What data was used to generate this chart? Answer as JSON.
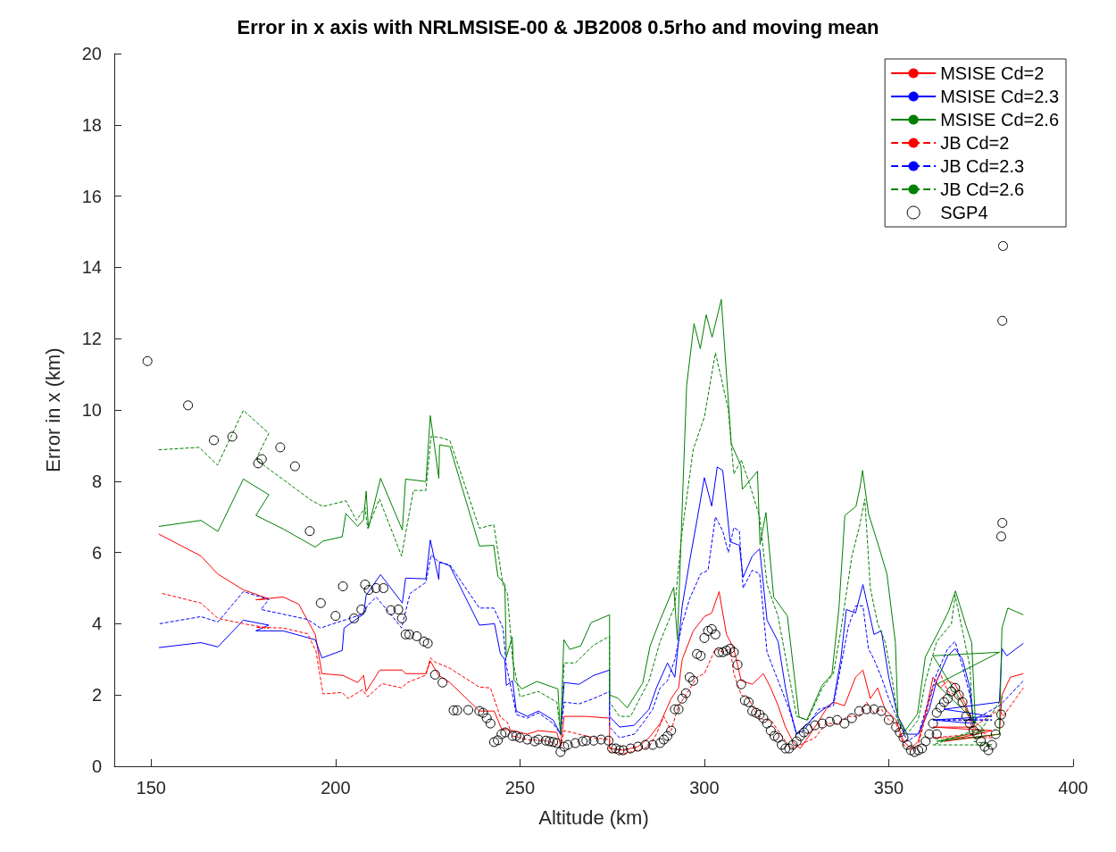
{
  "chart_data": {
    "type": "line",
    "title": "Error in x axis with NRLMSISE-00 & JB2008 0.5rho and moving mean",
    "xlabel": "Altitude (km)",
    "ylabel": "Error in x (km)",
    "xlim": [
      140,
      400
    ],
    "xticks": [
      150,
      200,
      250,
      300,
      350,
      400
    ],
    "ylim": [
      0,
      20
    ],
    "yticks": [
      0,
      2,
      4,
      6,
      8,
      10,
      12,
      14,
      16,
      18,
      20
    ],
    "grid": false,
    "legend": "top right",
    "series": [
      {
        "name": "MSISE Cd=2",
        "color": "#ff0000",
        "line_style": "solid",
        "marker": "none",
        "x": [
          152,
          163.5,
          168,
          175,
          181.9,
          178.4,
          185.8,
          190,
          194.5,
          196.3,
          202,
          206,
          207.6,
          208.3,
          212,
          218.1,
          219,
          224.5,
          225.7,
          228,
          231,
          239,
          243,
          245,
          248,
          252,
          255,
          260,
          261,
          262,
          268,
          274.3,
          274.3,
          278,
          282,
          285,
          288,
          291,
          293,
          294,
          297,
          300,
          302,
          304,
          306,
          308,
          310,
          313,
          316,
          318,
          320,
          322,
          324,
          326,
          330,
          333,
          335,
          338,
          341,
          343,
          345,
          347,
          349,
          352,
          354,
          356,
          358,
          360,
          362,
          364,
          366,
          368,
          371,
          373,
          362,
          378,
          365,
          380,
          380.7,
          383,
          386.5
        ],
        "values": [
          6.52,
          5.9,
          5.4,
          4.95,
          4.7,
          4.67,
          4.75,
          4.55,
          3.7,
          2.6,
          2.55,
          2.35,
          2.55,
          2.1,
          2.7,
          2.7,
          2.6,
          2.6,
          2.95,
          2.55,
          2.35,
          1.55,
          1.55,
          1.05,
          1.0,
          0.9,
          1.0,
          0.95,
          0.6,
          1.4,
          1.4,
          1.35,
          0.5,
          0.45,
          0.55,
          0.8,
          1.2,
          1.9,
          2.2,
          3.0,
          3.8,
          4.2,
          4.3,
          4.9,
          3.7,
          3.3,
          2.4,
          2.3,
          2.6,
          2.2,
          1.7,
          1.1,
          0.7,
          0.5,
          1.1,
          1.6,
          1.8,
          1.7,
          2.5,
          2.7,
          1.9,
          2.2,
          1.6,
          1.3,
          0.7,
          0.5,
          0.7,
          1.5,
          2.5,
          2.2,
          2.4,
          2.3,
          1.7,
          1.1,
          1.1,
          1.0,
          0.7,
          0.9,
          2.0,
          2.5,
          2.6
        ]
      },
      {
        "name": "MSISE Cd=2.3",
        "color": "#0000ff",
        "line_style": "solid",
        "marker": "none",
        "x": [
          152.1,
          163.5,
          168.1,
          175,
          181.9,
          178.4,
          185.8,
          194.5,
          196.3,
          201.8,
          202.3,
          207.6,
          208.3,
          212.2,
          218.1,
          219,
          224.5,
          225.7,
          228,
          228.2,
          231,
          239,
          243.1,
          244.7,
          245.9,
          246.3,
          248,
          249,
          252,
          255,
          259,
          261,
          262,
          266,
          270,
          274.3,
          274.3,
          277,
          281,
          285,
          287,
          290,
          292,
          294,
          296,
          298,
          300,
          302,
          303.5,
          305,
          307,
          309.5,
          310.5,
          313,
          315,
          317,
          320,
          322,
          323,
          325,
          327,
          331,
          335,
          337,
          338.5,
          341,
          343,
          344.5,
          346,
          348,
          350,
          352.5,
          355,
          358,
          361,
          363,
          366,
          368,
          370,
          372,
          373,
          362,
          378,
          365,
          380,
          380.7,
          382,
          386.5
        ],
        "values": [
          3.33,
          3.47,
          3.35,
          4.1,
          3.96,
          3.8,
          3.8,
          3.55,
          3.04,
          3.25,
          3.88,
          4.27,
          4.8,
          5.38,
          4.58,
          5.28,
          5.26,
          6.35,
          5.24,
          5.74,
          5.62,
          3.96,
          4.0,
          3.16,
          2.99,
          2.27,
          2.4,
          1.55,
          1.4,
          1.55,
          1.3,
          0.9,
          2.35,
          2.3,
          2.55,
          2.7,
          1.4,
          1.1,
          1.15,
          1.6,
          2.2,
          2.9,
          2.5,
          4.5,
          5.75,
          6.9,
          8.1,
          7.3,
          8.4,
          8.3,
          6.3,
          6.2,
          5.3,
          5.9,
          6.1,
          4.1,
          3.5,
          2.2,
          1.7,
          0.9,
          1.1,
          1.5,
          1.8,
          3.0,
          4.4,
          4.3,
          5.1,
          4.4,
          3.7,
          3.8,
          2.5,
          1.4,
          0.9,
          0.9,
          1.6,
          2.4,
          3.1,
          3.3,
          3.0,
          2.2,
          1.2,
          1.3,
          1.4,
          1.6,
          1.8,
          3.3,
          3.1,
          3.45
        ]
      },
      {
        "name": "MSISE Cd=2.6",
        "color": "#008000",
        "line_style": "solid",
        "marker": "none",
        "x": [
          152.1,
          163.5,
          168.1,
          175,
          181.9,
          178.4,
          185.8,
          194.5,
          196.6,
          201.8,
          202.8,
          206,
          207.6,
          208.3,
          208.9,
          212.2,
          218.1,
          219,
          224.5,
          225.7,
          228,
          228.2,
          231,
          239,
          242.9,
          244,
          245.9,
          246.3,
          247.9,
          248.4,
          250.5,
          254.6,
          260.3,
          261,
          261.9,
          263.5,
          266.5,
          269.3,
          274.3,
          274.3,
          276.6,
          279.1,
          283.3,
          285.3,
          287.8,
          291.7,
          292.7,
          295.2,
          297.2,
          298.9,
          300.5,
          302.1,
          304.6,
          307.3,
          309.9,
          310.3,
          314.4,
          315.1,
          316.7,
          318.8,
          322.5,
          325.7,
          327.8,
          331.9,
          334.6,
          336.5,
          338.1,
          341.1,
          342.2,
          342.9,
          344.5,
          347.2,
          349.5,
          351.8,
          352.5,
          354.4,
          357.8,
          359.9,
          364,
          366.3,
          368.1,
          370.9,
          372.5,
          373.5,
          362,
          380,
          363,
          376,
          363,
          380,
          380.7,
          382.3,
          386.5
        ],
        "values": [
          6.73,
          6.9,
          6.59,
          8.06,
          7.62,
          7.04,
          6.66,
          6.15,
          6.32,
          6.44,
          7.09,
          6.73,
          6.92,
          7.72,
          6.68,
          8.08,
          6.63,
          8.06,
          7.99,
          9.84,
          8.08,
          9.02,
          8.97,
          6.18,
          6.2,
          5.33,
          5.11,
          3.06,
          3.63,
          2.42,
          2.17,
          2.38,
          2.17,
          0.87,
          3.55,
          3.28,
          3.38,
          4.03,
          4.25,
          2.0,
          1.91,
          1.64,
          2.34,
          3.38,
          4.05,
          5.02,
          3.55,
          10.69,
          12.42,
          11.72,
          12.67,
          12.04,
          13.1,
          9.05,
          8.44,
          7.77,
          8.28,
          6.22,
          7.12,
          4.75,
          4.22,
          1.38,
          1.3,
          2.27,
          2.58,
          4.44,
          7.04,
          7.29,
          7.82,
          8.3,
          7.09,
          6.2,
          5.4,
          3.47,
          1.38,
          0.99,
          1.47,
          3.06,
          3.88,
          4.37,
          4.92,
          3.96,
          3.47,
          1.2,
          3.1,
          3.2,
          2.3,
          1.0,
          0.7,
          0.9,
          3.88,
          4.44,
          4.25
        ]
      },
      {
        "name": "JB Cd=2",
        "color": "#ff0000",
        "line_style": "dashed",
        "marker": "none",
        "x": [
          153,
          163.5,
          168.1,
          175,
          181.9,
          178.4,
          185.8,
          192.4,
          194.7,
          196.6,
          201.8,
          203.4,
          207.3,
          208.7,
          212.6,
          217.9,
          219.5,
          224.5,
          225.7,
          227.1,
          231,
          239,
          242,
          244.7,
          246.6,
          248,
          252,
          258,
          261,
          262,
          266,
          270,
          274.3,
          274.3,
          278,
          282,
          285,
          287,
          289,
          291,
          293,
          295,
          298,
          300,
          303,
          305,
          307,
          308,
          310,
          312,
          314,
          316,
          318,
          320,
          322,
          324,
          326,
          330,
          333,
          336,
          339,
          342,
          344,
          346,
          348,
          350,
          352,
          354,
          356,
          358,
          360,
          362,
          364,
          366,
          368,
          370,
          372,
          373,
          362,
          378,
          373,
          380,
          381,
          386.5
        ],
        "values": [
          4.85,
          4.58,
          4.15,
          4.0,
          3.88,
          3.9,
          3.88,
          3.72,
          3.23,
          2.03,
          2.07,
          1.9,
          2.15,
          1.95,
          2.32,
          2.2,
          2.35,
          2.56,
          3.04,
          2.92,
          2.75,
          2.22,
          2.2,
          1.38,
          1.23,
          0.85,
          0.75,
          0.7,
          0.55,
          1.0,
          0.9,
          0.8,
          0.75,
          0.4,
          0.35,
          0.45,
          0.55,
          0.9,
          1.4,
          1.0,
          1.7,
          2.0,
          2.5,
          2.6,
          3.3,
          3.2,
          3.3,
          2.6,
          2.0,
          1.9,
          1.5,
          1.3,
          1.3,
          1.0,
          0.7,
          0.5,
          0.6,
          0.8,
          1.2,
          1.2,
          1.4,
          1.4,
          1.8,
          1.5,
          1.6,
          1.3,
          1.2,
          0.6,
          0.45,
          0.6,
          1.4,
          2.2,
          2.6,
          2.1,
          2.0,
          1.8,
          1.3,
          0.9,
          0.8,
          0.8,
          1.1,
          1.6,
          1.4,
          2.2
        ]
      },
      {
        "name": "JB Cd=2.3",
        "color": "#0000ff",
        "line_style": "dashed",
        "marker": "none",
        "x": [
          152.3,
          163.5,
          168.1,
          175,
          181.9,
          179.8,
          192.4,
          195.9,
          201.8,
          207.3,
          208.7,
          211,
          214.9,
          217.9,
          220.2,
          224.5,
          225.9,
          228.2,
          231,
          239,
          242.9,
          245.4,
          246.3,
          248,
          249,
          252,
          255,
          259,
          261,
          262,
          266,
          270,
          274.3,
          274.3,
          277,
          281,
          284,
          286,
          288,
          290,
          292,
          294,
          296,
          299,
          301,
          303,
          305,
          306.5,
          308,
          309.5,
          310.5,
          313,
          315,
          317,
          320,
          323,
          325,
          327,
          331,
          335,
          337,
          339,
          341,
          343,
          344.5,
          346,
          348,
          350,
          352.5,
          355,
          358,
          361,
          363,
          366,
          368,
          370,
          372,
          373,
          362,
          378,
          373,
          380,
          381,
          386.5
        ],
        "values": [
          4.0,
          4.2,
          4.05,
          4.9,
          4.68,
          4.4,
          4.12,
          3.88,
          4.08,
          4.27,
          4.51,
          4.75,
          4.27,
          3.88,
          4.85,
          5.16,
          5.93,
          5.72,
          5.65,
          4.44,
          4.44,
          3.88,
          2.82,
          2.0,
          1.45,
          1.35,
          1.5,
          1.2,
          0.9,
          1.8,
          1.75,
          1.9,
          2.1,
          1.1,
          0.8,
          0.9,
          1.3,
          1.6,
          2.2,
          2.4,
          3.0,
          4.0,
          4.7,
          5.4,
          5.5,
          7.0,
          6.6,
          6.0,
          6.7,
          6.6,
          5.0,
          5.5,
          5.4,
          3.2,
          2.4,
          1.6,
          0.9,
          1.0,
          1.6,
          1.7,
          2.8,
          3.9,
          4.5,
          4.5,
          3.3,
          3.0,
          2.5,
          1.9,
          1.3,
          0.7,
          0.9,
          1.9,
          2.6,
          3.3,
          3.5,
          2.8,
          2.0,
          1.3,
          1.3,
          1.3,
          1.3,
          1.7,
          1.8,
          2.4
        ]
      },
      {
        "name": "JB Cd=2.6",
        "color": "#008000",
        "line_style": "dashed",
        "marker": "none",
        "x": [
          152,
          163,
          168,
          175,
          181.9,
          178.4,
          193.6,
          196.6,
          202.8,
          205.7,
          208,
          208.7,
          211.9,
          217.9,
          221.1,
          224.5,
          225.9,
          228.7,
          231,
          239,
          242.9,
          245.4,
          246.6,
          248,
          250,
          255,
          260,
          261,
          262,
          265,
          270,
          274.3,
          274.3,
          277,
          280,
          285,
          288,
          292,
          294,
          297,
          300,
          303,
          305,
          306.5,
          308,
          310,
          312,
          315,
          317,
          320,
          325,
          328,
          332,
          335,
          337,
          340,
          342,
          343.5,
          345,
          347,
          349,
          351,
          352.5,
          355,
          358,
          360,
          363,
          367,
          368,
          370,
          372,
          373,
          362,
          378,
          373,
          380,
          381
        ],
        "values": [
          8.88,
          8.95,
          8.45,
          9.99,
          9.34,
          8.61,
          7.45,
          7.29,
          7.45,
          6.9,
          7.26,
          6.68,
          7.5,
          5.9,
          7.74,
          7.74,
          9.26,
          9.22,
          9.14,
          6.68,
          6.78,
          5.09,
          4.85,
          3.0,
          1.95,
          2.1,
          1.8,
          0.95,
          2.9,
          2.9,
          3.4,
          3.65,
          1.8,
          1.4,
          1.4,
          2.4,
          3.5,
          4.5,
          6.6,
          8.9,
          9.8,
          11.6,
          10.7,
          10.0,
          8.2,
          8.6,
          8.0,
          7.0,
          5.1,
          4.2,
          1.4,
          1.3,
          2.2,
          2.6,
          3.8,
          5.9,
          6.7,
          7.5,
          5.0,
          4.0,
          3.5,
          2.4,
          1.3,
          0.9,
          1.3,
          2.4,
          3.5,
          4.0,
          4.8,
          3.8,
          2.8,
          1.0,
          0.6,
          0.6,
          0.7,
          1.8,
          2.0
        ]
      },
      {
        "name": "SGP4",
        "type": "scatter",
        "color": "#000000",
        "marker": "circle",
        "x": [
          149,
          160,
          167,
          172,
          179,
          180,
          185,
          189,
          193,
          196,
          200,
          202,
          205,
          207,
          208,
          209,
          211,
          213,
          215,
          217,
          218,
          219,
          220,
          222,
          224,
          225,
          227,
          229,
          232,
          233,
          236,
          239,
          240,
          241,
          242,
          243,
          244,
          245,
          246,
          248,
          249,
          250,
          252,
          254,
          255,
          257,
          258,
          259,
          260,
          261,
          262,
          263,
          265,
          267,
          268,
          270,
          272,
          274,
          275,
          276,
          277,
          278,
          280,
          282,
          284,
          286,
          288,
          289,
          290,
          291,
          292,
          293,
          294,
          295,
          296,
          297,
          298,
          299,
          300,
          301,
          302,
          303,
          304,
          305,
          306,
          307,
          308,
          309,
          310,
          311,
          312,
          313,
          314,
          315,
          316,
          317,
          318,
          319,
          320,
          321,
          322,
          323,
          324,
          325,
          326,
          327,
          328,
          330,
          332,
          334,
          336,
          338,
          340,
          342,
          344,
          346,
          348,
          350,
          352,
          353,
          354,
          355,
          356,
          357,
          358,
          359,
          360,
          361,
          362,
          363,
          364,
          365,
          366,
          367,
          368,
          369,
          370,
          371,
          372,
          373,
          374,
          375,
          376,
          377,
          378,
          379,
          380,
          380.5,
          363,
          380.5,
          380.8,
          380.8,
          381
        ],
        "values": [
          11.37,
          10.13,
          9.15,
          9.25,
          8.5,
          8.62,
          8.95,
          8.42,
          6.6,
          4.58,
          4.22,
          5.05,
          4.15,
          4.4,
          5.1,
          4.95,
          5.0,
          5.0,
          4.38,
          4.4,
          4.15,
          3.7,
          3.7,
          3.65,
          3.5,
          3.45,
          2.57,
          2.35,
          1.57,
          1.57,
          1.58,
          1.55,
          1.5,
          1.35,
          1.2,
          0.68,
          0.73,
          0.9,
          0.95,
          0.85,
          0.85,
          0.8,
          0.75,
          0.7,
          0.75,
          0.72,
          0.7,
          0.68,
          0.65,
          0.4,
          0.55,
          0.6,
          0.65,
          0.7,
          0.72,
          0.72,
          0.75,
          0.72,
          0.5,
          0.5,
          0.45,
          0.45,
          0.5,
          0.55,
          0.6,
          0.6,
          0.65,
          0.75,
          0.85,
          1.0,
          1.6,
          1.6,
          1.9,
          2.05,
          2.5,
          2.4,
          3.15,
          3.1,
          3.6,
          3.8,
          3.85,
          3.7,
          3.2,
          3.2,
          3.25,
          3.3,
          3.2,
          2.85,
          2.3,
          1.85,
          1.8,
          1.55,
          1.5,
          1.45,
          1.35,
          1.2,
          1.0,
          0.85,
          0.8,
          0.6,
          0.5,
          0.5,
          0.6,
          0.7,
          0.85,
          0.95,
          1.05,
          1.15,
          1.2,
          1.25,
          1.3,
          1.2,
          1.35,
          1.55,
          1.6,
          1.6,
          1.55,
          1.3,
          1.1,
          0.95,
          0.8,
          0.6,
          0.45,
          0.4,
          0.45,
          0.5,
          0.7,
          0.9,
          1.2,
          1.5,
          1.65,
          1.8,
          1.9,
          2.1,
          2.2,
          2.0,
          1.8,
          1.4,
          1.2,
          1.0,
          0.9,
          0.7,
          0.55,
          0.45,
          0.6,
          0.9,
          1.2,
          1.45,
          0.9,
          6.45,
          6.83,
          12.5,
          14.6
        ]
      }
    ]
  }
}
